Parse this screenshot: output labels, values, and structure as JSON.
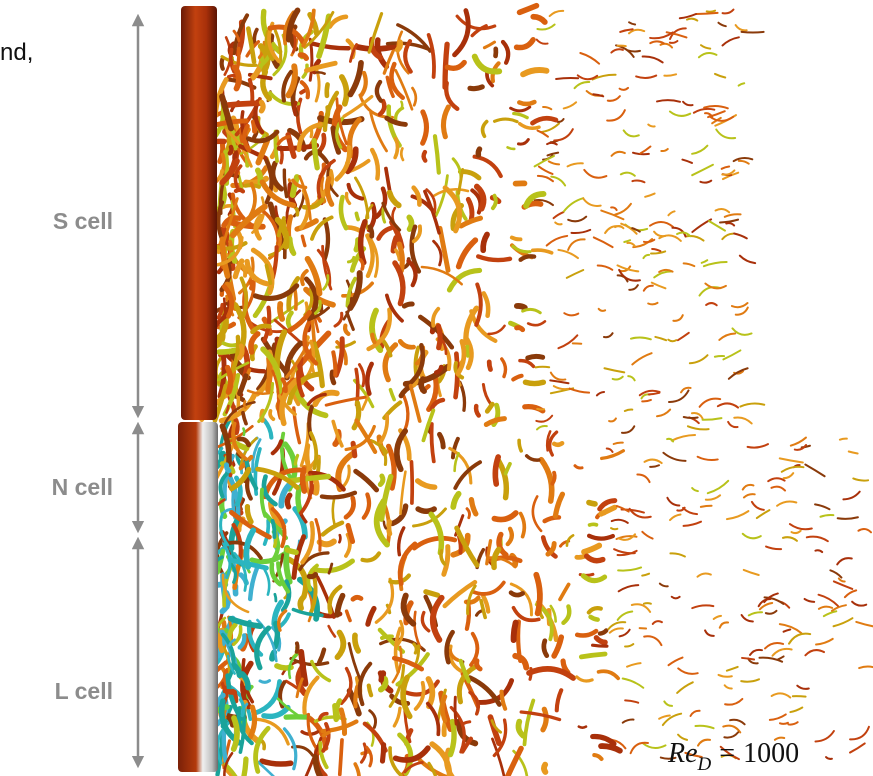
{
  "labels": {
    "top_fragment": "nd,",
    "cells": [
      "S cell",
      "N cell",
      "L cell"
    ]
  },
  "reynolds": {
    "symbol": "Re",
    "subscript": "D",
    "relation": "=",
    "value": 1000
  }
}
